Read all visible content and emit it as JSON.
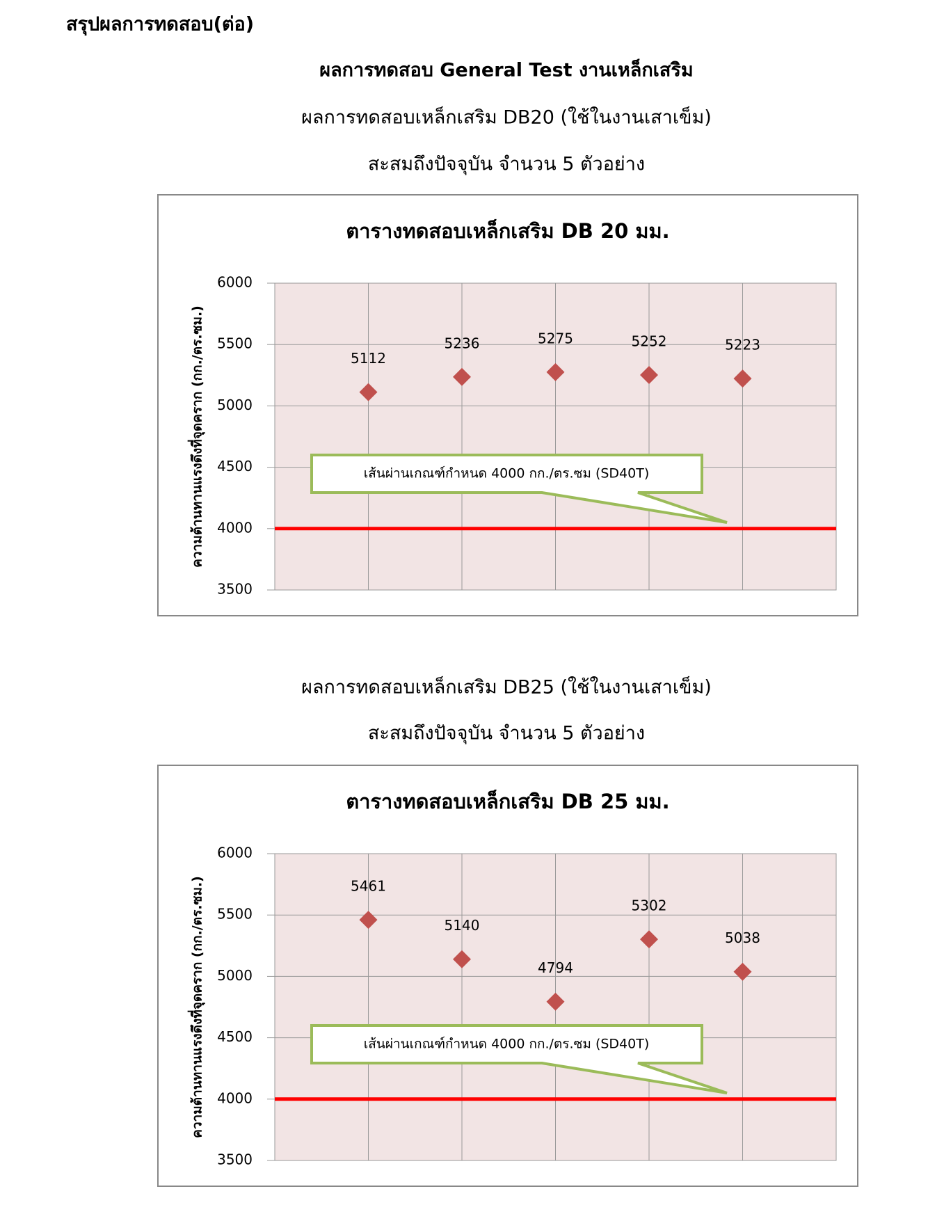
{
  "document": {
    "heading": "สรุปผลการทดสอบ(ต่อ)",
    "title": "ผลการทดสอบ General Test งานเหล็กเสริม",
    "captions": [
      [
        "ผลการทดสอบเหล็กเสริม DB20 (ใช้ในงานเสาเข็ม)",
        "สะสมถึงปัจจุบัน จำนวน 5 ตัวอย่าง"
      ],
      [
        "ผลการทดสอบเหล็กเสริม DB25 (ใช้ในงานเสาเข็ม)",
        "สะสมถึงปัจจุบัน จำนวน 5 ตัวอย่าง"
      ]
    ]
  },
  "chart_data": [
    {
      "type": "scatter",
      "title": "ตารางทดสอบเหล็กเสริม DB 20 มม.",
      "y_label": "ความต้านทานแรงดึงที่จุดคราก (กก./ตร.ซม.)",
      "categories": [
        null,
        null,
        null,
        null,
        null
      ],
      "values": [
        5112,
        5236,
        5275,
        5252,
        5223
      ],
      "color": "#c0504d",
      "ylim": [
        3500,
        6000
      ],
      "yticks": [
        3500,
        4000,
        4500,
        5000,
        5500,
        6000
      ],
      "grid": true,
      "threshold": {
        "value": 4000,
        "color": "#ff0000"
      },
      "annotation": "เส้นผ่านเกณฑ์กำหนด 4000 กก./ตร.ซม (SD40T)"
    },
    {
      "type": "scatter",
      "title": "ตารางทดสอบเหล็กเสริม DB 25 มม.",
      "y_label": "ความต้านทานแรงดึงที่จุดคราก (กก./ตร.ซม.)",
      "categories": [
        null,
        null,
        null,
        null,
        null
      ],
      "values": [
        5461,
        5140,
        4794,
        5302,
        5038
      ],
      "color": "#c0504d",
      "ylim": [
        3500,
        6000
      ],
      "yticks": [
        3500,
        4000,
        4500,
        5000,
        5500,
        6000
      ],
      "grid": true,
      "threshold": {
        "value": 4000,
        "color": "#ff0000"
      },
      "annotation": "เส้นผ่านเกณฑ์กำหนด 4000 กก./ตร.ซม (SD40T)"
    }
  ]
}
